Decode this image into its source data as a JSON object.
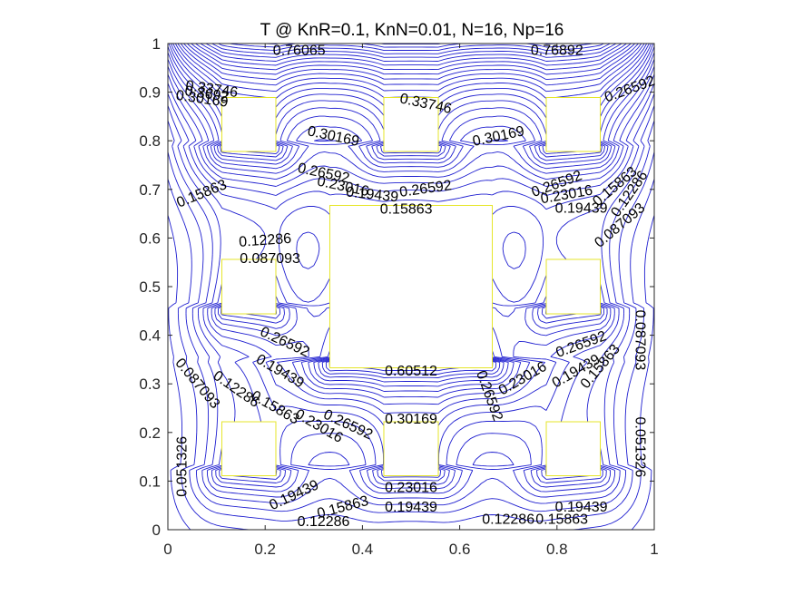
{
  "colors": {
    "contour": "#1f1fd0",
    "obstacle": "#e6e62a",
    "axis": "#262626",
    "background": "#ffffff"
  },
  "chart_data": {
    "type": "contour",
    "title": "T @ KnR=0.1, KnN=0.01, N=16, Np=16",
    "xlabel": "",
    "ylabel": "",
    "xlim": [
      0,
      1
    ],
    "ylim": [
      0,
      1
    ],
    "xticks": [
      0,
      0.2,
      0.4,
      0.6,
      0.8,
      1
    ],
    "yticks": [
      0,
      0.1,
      0.2,
      0.3,
      0.4,
      0.5,
      0.6,
      0.7,
      0.8,
      0.9,
      1
    ],
    "xtick_labels": [
      "0",
      "0.2",
      "0.4",
      "0.6",
      "0.8",
      "1"
    ],
    "ytick_labels": [
      "0",
      "0.1",
      "0.2",
      "0.3",
      "0.4",
      "0.5",
      "0.6",
      "0.7",
      "0.8",
      "0.9",
      "1"
    ],
    "grid": false,
    "obstacles": [
      {
        "name": "small-top-left",
        "x": [
          0.111,
          0.222
        ],
        "y": [
          0.778,
          0.889
        ]
      },
      {
        "name": "small-top-center",
        "x": [
          0.444,
          0.556
        ],
        "y": [
          0.778,
          0.889
        ]
      },
      {
        "name": "small-top-right",
        "x": [
          0.778,
          0.889
        ],
        "y": [
          0.778,
          0.889
        ]
      },
      {
        "name": "small-middle-left",
        "x": [
          0.111,
          0.222
        ],
        "y": [
          0.444,
          0.556
        ]
      },
      {
        "name": "large-center",
        "x": [
          0.333,
          0.667
        ],
        "y": [
          0.333,
          0.667
        ]
      },
      {
        "name": "small-middle-right",
        "x": [
          0.778,
          0.889
        ],
        "y": [
          0.444,
          0.556
        ]
      },
      {
        "name": "small-bottom-left",
        "x": [
          0.111,
          0.222
        ],
        "y": [
          0.111,
          0.222
        ]
      },
      {
        "name": "small-bottom-center",
        "x": [
          0.444,
          0.556
        ],
        "y": [
          0.111,
          0.222
        ]
      },
      {
        "name": "small-bottom-right",
        "x": [
          0.778,
          0.889
        ],
        "y": [
          0.111,
          0.222
        ]
      }
    ],
    "contour_labels": [
      {
        "text": "0.76065",
        "x": 0.27,
        "y": 0.985,
        "angle": 0
      },
      {
        "text": "0.33746",
        "x": 0.09,
        "y": 0.905,
        "angle": 8
      },
      {
        "text": "0.30169",
        "x": 0.07,
        "y": 0.885,
        "angle": 8
      },
      {
        "text": "0.3692",
        "x": 0.08,
        "y": 0.895,
        "angle": 8
      },
      {
        "text": "0.33746",
        "x": 0.53,
        "y": 0.875,
        "angle": 12
      },
      {
        "text": "0.30169",
        "x": 0.34,
        "y": 0.808,
        "angle": 12
      },
      {
        "text": "0.30169",
        "x": 0.68,
        "y": 0.808,
        "angle": -12
      },
      {
        "text": "0.76892",
        "x": 0.8,
        "y": 0.985,
        "angle": 0
      },
      {
        "text": "0.26592",
        "x": 0.95,
        "y": 0.905,
        "angle": -20
      },
      {
        "text": "0.26592",
        "x": 0.32,
        "y": 0.732,
        "angle": 12
      },
      {
        "text": "0.23016",
        "x": 0.36,
        "y": 0.705,
        "angle": 12
      },
      {
        "text": "0.19439",
        "x": 0.42,
        "y": 0.688,
        "angle": 6
      },
      {
        "text": "0.26592",
        "x": 0.53,
        "y": 0.7,
        "angle": -8
      },
      {
        "text": "0.15863",
        "x": 0.49,
        "y": 0.658,
        "angle": 0
      },
      {
        "text": "0.15863",
        "x": 0.07,
        "y": 0.69,
        "angle": -22
      },
      {
        "text": "0.12286",
        "x": 0.2,
        "y": 0.594,
        "angle": -4
      },
      {
        "text": "0.087093",
        "x": 0.21,
        "y": 0.556,
        "angle": 0
      },
      {
        "text": "0.26592",
        "x": 0.8,
        "y": 0.71,
        "angle": -20
      },
      {
        "text": "0.23016",
        "x": 0.82,
        "y": 0.688,
        "angle": -10
      },
      {
        "text": "0.19439",
        "x": 0.85,
        "y": 0.66,
        "angle": 0
      },
      {
        "text": "0.15863",
        "x": 0.92,
        "y": 0.705,
        "angle": -40
      },
      {
        "text": "0.12286",
        "x": 0.95,
        "y": 0.69,
        "angle": -55
      },
      {
        "text": "0.087093",
        "x": 0.93,
        "y": 0.625,
        "angle": -40
      },
      {
        "text": "0.26592",
        "x": 0.24,
        "y": 0.385,
        "angle": 25
      },
      {
        "text": "0.19439",
        "x": 0.23,
        "y": 0.325,
        "angle": 30
      },
      {
        "text": "0.12286",
        "x": 0.14,
        "y": 0.288,
        "angle": 35
      },
      {
        "text": "0.087093",
        "x": 0.06,
        "y": 0.3,
        "angle": 50
      },
      {
        "text": "0.15863",
        "x": 0.22,
        "y": 0.25,
        "angle": 30
      },
      {
        "text": "0.26592",
        "x": 0.37,
        "y": 0.215,
        "angle": 25
      },
      {
        "text": "0.23016",
        "x": 0.31,
        "y": 0.212,
        "angle": 30
      },
      {
        "text": "0.60512",
        "x": 0.5,
        "y": 0.325,
        "angle": 0
      },
      {
        "text": "0.30169",
        "x": 0.5,
        "y": 0.226,
        "angle": 0
      },
      {
        "text": "0.26592",
        "x": 0.66,
        "y": 0.275,
        "angle": 70
      },
      {
        "text": "0.23016",
        "x": 0.73,
        "y": 0.31,
        "angle": -30
      },
      {
        "text": "0.26592",
        "x": 0.85,
        "y": 0.38,
        "angle": -20
      },
      {
        "text": "0.19439",
        "x": 0.84,
        "y": 0.325,
        "angle": -30
      },
      {
        "text": "0.15863",
        "x": 0.89,
        "y": 0.335,
        "angle": -50
      },
      {
        "text": "0.087093",
        "x": 0.97,
        "y": 0.39,
        "angle": 90
      },
      {
        "text": "0.051326",
        "x": 0.97,
        "y": 0.17,
        "angle": 90
      },
      {
        "text": "0.051326",
        "x": 0.03,
        "y": 0.13,
        "angle": -90
      },
      {
        "text": "0.19439",
        "x": 0.26,
        "y": 0.07,
        "angle": -25
      },
      {
        "text": "0.15863",
        "x": 0.36,
        "y": 0.045,
        "angle": -15
      },
      {
        "text": "0.12286",
        "x": 0.32,
        "y": 0.015,
        "angle": 0
      },
      {
        "text": "0.23016",
        "x": 0.5,
        "y": 0.085,
        "angle": 0
      },
      {
        "text": "0.19439",
        "x": 0.5,
        "y": 0.045,
        "angle": 0
      },
      {
        "text": "0.12286",
        "x": 0.7,
        "y": 0.02,
        "angle": 0
      },
      {
        "text": "0.19439",
        "x": 0.85,
        "y": 0.045,
        "angle": 0
      },
      {
        "text": "0.15863",
        "x": 0.81,
        "y": 0.02,
        "angle": 0
      }
    ]
  }
}
